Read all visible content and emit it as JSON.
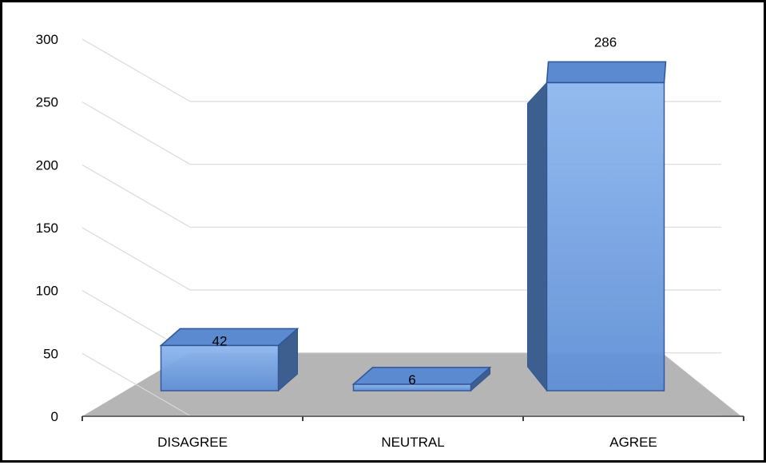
{
  "chart_data": {
    "type": "bar",
    "categories": [
      "DISAGREE",
      "NEUTRAL",
      "AGREE"
    ],
    "values": [
      42,
      6,
      286
    ],
    "data_labels": [
      "42",
      "6",
      "286"
    ],
    "title": "",
    "xlabel": "",
    "ylabel": "",
    "ylim": [
      0,
      300
    ],
    "y_ticks": [
      0,
      50,
      100,
      150,
      200,
      250,
      300
    ],
    "y_tick_labels": [
      "0",
      "50",
      "100",
      "150",
      "200",
      "250",
      "300"
    ],
    "grid": true,
    "legend": "none",
    "style": "3d-column",
    "colors": {
      "bar_front": "#6a9ce0",
      "bar_side": "#3d5f8f",
      "bar_top": "#5b8ad0",
      "bar_edge": "#2f5597",
      "floor": "#b5b5b5",
      "grid": "#d9d9d9"
    }
  }
}
